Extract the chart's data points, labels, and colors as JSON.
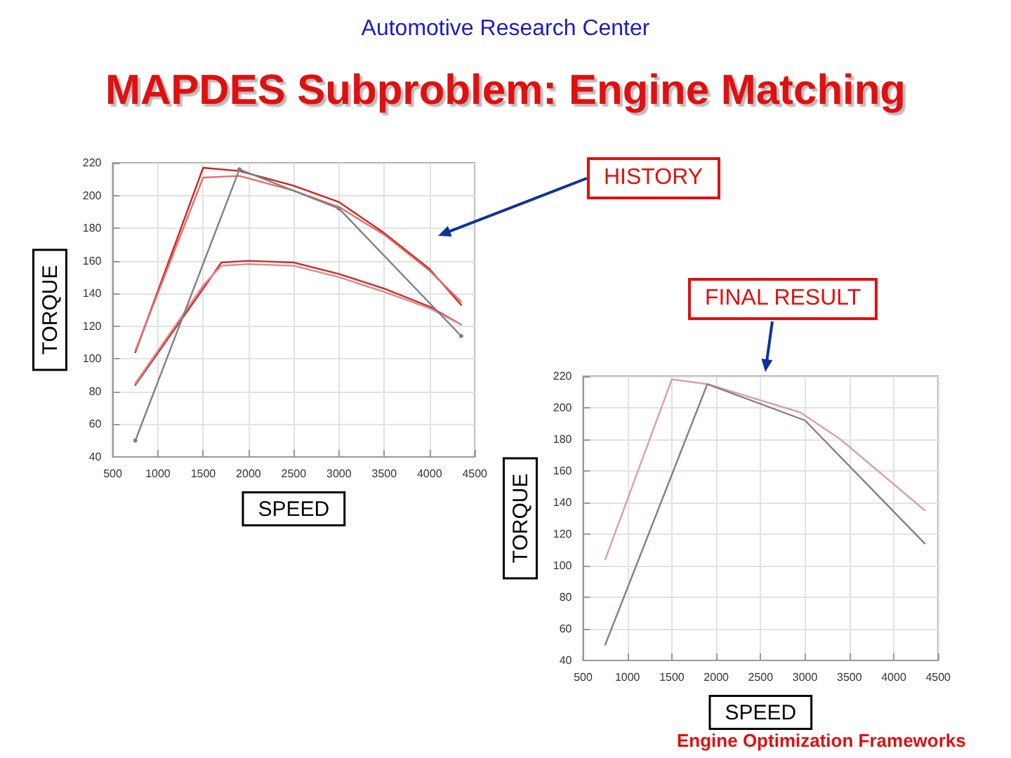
{
  "chart_data": [
    {
      "type": "line",
      "title": "MAPDES Subproblem: Engine Matching",
      "subtitle": "Automotive Research Center",
      "annotations": [
        "HISTORY"
      ],
      "xlabel": "SPEED",
      "ylabel": "TORQUE",
      "xlim": [
        500,
        4500
      ],
      "xticks": [
        500,
        1000,
        1500,
        2000,
        2500,
        3000,
        3500,
        4000,
        4500
      ],
      "ylim": [
        40,
        220
      ],
      "yticks": [
        40,
        60,
        80,
        100,
        120,
        140,
        160,
        180,
        200,
        220
      ],
      "grid": true,
      "line_style": "solid",
      "marker": "none",
      "series": [
        {
          "color": "#d42020",
          "x": [
            750,
            1500,
            1900,
            2500,
            3000,
            3500,
            4000,
            4350
          ],
          "values": [
            104,
            217,
            215,
            206,
            196,
            177,
            155,
            133
          ]
        },
        {
          "color": "#e07070",
          "x": [
            750,
            1500,
            1900,
            2500,
            3000,
            3500,
            4000,
            4350
          ],
          "values": [
            105,
            211,
            212,
            203,
            193,
            176,
            154,
            135
          ]
        },
        {
          "color": "#c83030",
          "x": [
            750,
            1500,
            1700,
            2000,
            2500,
            3000,
            3500,
            4000,
            4350
          ],
          "values": [
            84,
            143,
            159,
            160,
            159,
            152,
            143,
            132,
            121
          ]
        },
        {
          "color": "#e08888",
          "x": [
            750,
            1500,
            1700,
            2000,
            2500,
            3000,
            3500,
            4000,
            4350
          ],
          "values": [
            85,
            145,
            157,
            158,
            157,
            150,
            141,
            131,
            121
          ]
        },
        {
          "color": "#808080",
          "marker": "circle",
          "x": [
            750,
            1900,
            3000,
            4350
          ],
          "values": [
            50,
            216,
            192,
            114
          ]
        }
      ]
    },
    {
      "type": "line",
      "annotations": [
        "FINAL RESULT",
        "Engine Optimization Frameworks"
      ],
      "xlabel": "SPEED",
      "ylabel": "TORQUE",
      "xlim": [
        500,
        4500
      ],
      "xticks": [
        500,
        1000,
        1500,
        2000,
        2500,
        3000,
        3500,
        4000,
        4500
      ],
      "ylim": [
        40,
        220
      ],
      "yticks": [
        40,
        60,
        80,
        100,
        120,
        140,
        160,
        180,
        200,
        220
      ],
      "grid": true,
      "line_style": "solid",
      "marker": "none",
      "series": [
        {
          "color": "#d9a0a8",
          "x": [
            750,
            1500,
            1900,
            2950,
            3400,
            4350
          ],
          "values": [
            104,
            218,
            215,
            197,
            180,
            135
          ]
        },
        {
          "color": "#8a7890",
          "x": [
            750,
            1900,
            3000,
            4350
          ],
          "values": [
            50,
            215,
            192,
            114
          ]
        }
      ]
    }
  ]
}
